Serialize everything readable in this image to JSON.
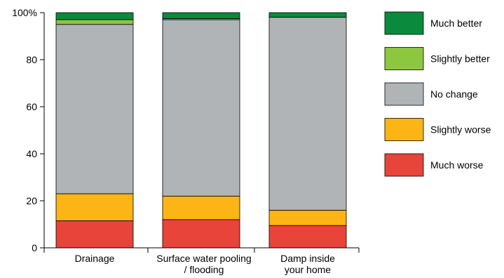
{
  "chart_data": {
    "type": "bar",
    "stacked": true,
    "categories": [
      [
        "Drainage"
      ],
      [
        "Surface water pooling",
        "/ flooding"
      ],
      [
        "Damp inside",
        "your home"
      ]
    ],
    "series": [
      {
        "name": "Much worse",
        "color": "#e8443a",
        "values": [
          11.5,
          12,
          9.5
        ]
      },
      {
        "name": "Slightly worse",
        "color": "#fcb514",
        "values": [
          11.5,
          10,
          6.5
        ]
      },
      {
        "name": "No change",
        "color": "#b1b4b6",
        "values": [
          72,
          75,
          82
        ]
      },
      {
        "name": "Slightly better",
        "color": "#8dc63f",
        "values": [
          2,
          0.5,
          0
        ]
      },
      {
        "name": "Much better",
        "color": "#0a8a3c",
        "values": [
          3,
          2.5,
          2
        ]
      }
    ],
    "ylim": [
      0,
      100
    ],
    "yticks": [
      "0",
      "20",
      "40",
      "60",
      "80",
      "100%"
    ],
    "ytick_values": [
      0,
      20,
      40,
      60,
      80,
      100
    ],
    "legend_position": "right",
    "grid": false
  }
}
